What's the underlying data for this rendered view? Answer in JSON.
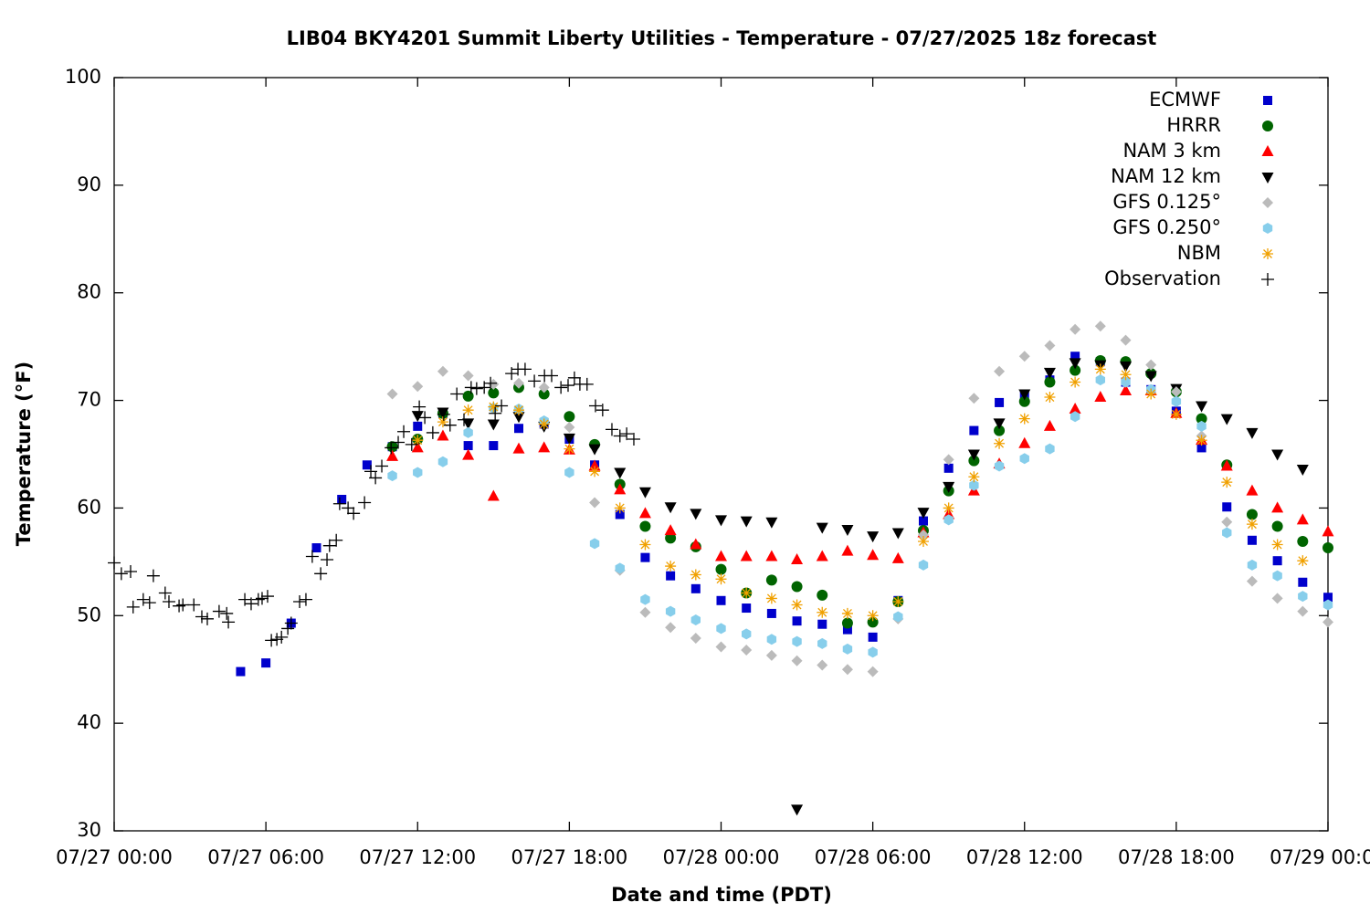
{
  "chart_data": {
    "type": "scatter",
    "title": "LIB04 BKY4201 Summit Liberty Utilities - Temperature - 07/27/2025 18z forecast",
    "x_label": "Date and time (PDT)",
    "y_label": "Temperature (°F)",
    "xlim": [
      "07/27 00:00",
      "07/29 00:00"
    ],
    "xticks": [
      "07/27 00:00",
      "07/27 06:00",
      "07/27 12:00",
      "07/27 18:00",
      "07/28 00:00",
      "07/28 06:00",
      "07/28 12:00",
      "07/28 18:00",
      "07/29 00:00"
    ],
    "ylim": [
      30,
      100
    ],
    "yticks": [
      30,
      40,
      50,
      60,
      70,
      80,
      90,
      100
    ],
    "legend": "top-right",
    "series": [
      {
        "name": "ECMWF",
        "color": "#0000cc",
        "marker": "square",
        "x": [
          "07/27 05:00",
          "07/27 06:00",
          "07/27 07:00",
          "07/27 08:00",
          "07/27 09:00",
          "07/27 10:00",
          "07/27 11:00",
          "07/27 12:00",
          "07/27 13:00",
          "07/27 14:00",
          "07/27 15:00",
          "07/27 16:00",
          "07/27 17:00",
          "07/27 18:00",
          "07/27 19:00",
          "07/27 20:00",
          "07/27 21:00",
          "07/27 22:00",
          "07/27 23:00",
          "07/28 00:00",
          "07/28 01:00",
          "07/28 02:00",
          "07/28 03:00",
          "07/28 04:00",
          "07/28 05:00",
          "07/28 06:00",
          "07/28 07:00",
          "07/28 08:00",
          "07/28 09:00",
          "07/28 10:00",
          "07/28 11:00",
          "07/28 12:00",
          "07/28 13:00",
          "07/28 14:00",
          "07/28 15:00",
          "07/28 16:00",
          "07/28 17:00",
          "07/28 18:00",
          "07/28 19:00",
          "07/28 20:00",
          "07/28 21:00",
          "07/28 22:00",
          "07/28 23:00",
          "07/29 00:00"
        ],
        "values": [
          44.8,
          45.6,
          49.3,
          56.3,
          60.8,
          64.0,
          65.7,
          67.6,
          68.8,
          65.8,
          65.8,
          67.4,
          67.8,
          66.4,
          64.0,
          59.4,
          55.4,
          53.7,
          52.5,
          51.4,
          50.7,
          50.2,
          49.5,
          49.2,
          48.7,
          48.0,
          51.4,
          58.8,
          63.7,
          67.2,
          69.8,
          70.6,
          71.9,
          74.1,
          73.6,
          71.7,
          71.0,
          69.0,
          65.6,
          60.1,
          57.0,
          55.1,
          53.1,
          51.7
        ]
      },
      {
        "name": "HRRR",
        "color": "#006400",
        "marker": "circle",
        "x": [
          "07/27 11:00",
          "07/27 12:00",
          "07/27 13:00",
          "07/27 14:00",
          "07/27 15:00",
          "07/27 16:00",
          "07/27 17:00",
          "07/27 18:00",
          "07/27 19:00",
          "07/27 20:00",
          "07/27 21:00",
          "07/27 22:00",
          "07/27 23:00",
          "07/28 00:00",
          "07/28 01:00",
          "07/28 02:00",
          "07/28 03:00",
          "07/28 04:00",
          "07/28 05:00",
          "07/28 06:00",
          "07/28 07:00",
          "07/28 08:00",
          "07/28 09:00",
          "07/28 10:00",
          "07/28 11:00",
          "07/28 12:00",
          "07/28 13:00",
          "07/28 14:00",
          "07/28 15:00",
          "07/28 16:00",
          "07/28 17:00",
          "07/28 18:00",
          "07/28 19:00",
          "07/28 20:00",
          "07/28 21:00",
          "07/28 22:00",
          "07/28 23:00",
          "07/29 00:00"
        ],
        "values": [
          65.7,
          66.4,
          68.8,
          70.4,
          70.7,
          71.2,
          70.6,
          68.5,
          65.9,
          62.2,
          58.3,
          57.2,
          56.4,
          54.3,
          52.1,
          53.3,
          52.7,
          51.9,
          49.3,
          49.4,
          51.3,
          57.9,
          61.6,
          64.4,
          67.2,
          69.9,
          71.7,
          72.8,
          73.7,
          73.6,
          72.5,
          70.8,
          68.3,
          64.0,
          59.4,
          58.3,
          56.9,
          56.3
        ]
      },
      {
        "name": "NAM 3 km",
        "color": "#ff0000",
        "marker": "triangle-up",
        "x": [
          "07/27 11:00",
          "07/27 12:00",
          "07/27 13:00",
          "07/27 14:00",
          "07/27 15:00",
          "07/27 16:00",
          "07/27 17:00",
          "07/27 18:00",
          "07/27 19:00",
          "07/27 20:00",
          "07/27 21:00",
          "07/27 22:00",
          "07/27 23:00",
          "07/28 00:00",
          "07/28 01:00",
          "07/28 02:00",
          "07/28 03:00",
          "07/28 04:00",
          "07/28 05:00",
          "07/28 06:00",
          "07/28 07:00",
          "07/28 08:00",
          "07/28 09:00",
          "07/28 10:00",
          "07/28 11:00",
          "07/28 12:00",
          "07/28 13:00",
          "07/28 14:00",
          "07/28 15:00",
          "07/28 16:00",
          "07/28 17:00",
          "07/28 18:00",
          "07/28 19:00",
          "07/28 20:00",
          "07/28 21:00",
          "07/28 22:00",
          "07/28 23:00",
          "07/29 00:00"
        ],
        "values": [
          64.8,
          65.6,
          66.7,
          64.9,
          61.1,
          65.5,
          65.6,
          65.4,
          63.9,
          61.7,
          59.5,
          57.9,
          56.6,
          55.5,
          55.5,
          55.5,
          55.2,
          55.5,
          56.0,
          55.6,
          55.3,
          57.7,
          59.4,
          61.6,
          64.1,
          66.0,
          67.6,
          69.2,
          70.3,
          70.9,
          70.9,
          68.8,
          66.3,
          63.9,
          61.6,
          60.0,
          58.9,
          57.8
        ]
      },
      {
        "name": "NAM 12 km",
        "color": "#000000",
        "marker": "triangle-down",
        "x": [
          "07/27 12:00",
          "07/27 13:00",
          "07/27 14:00",
          "07/27 15:00",
          "07/27 16:00",
          "07/27 17:00",
          "07/27 18:00",
          "07/27 19:00",
          "07/27 20:00",
          "07/27 21:00",
          "07/27 22:00",
          "07/27 23:00",
          "07/28 00:00",
          "07/28 01:00",
          "07/28 02:00",
          "07/28 03:00",
          "07/28 04:00",
          "07/28 05:00",
          "07/28 06:00",
          "07/28 07:00",
          "07/28 08:00",
          "07/28 09:00",
          "07/28 10:00",
          "07/28 11:00",
          "07/28 12:00",
          "07/28 13:00",
          "07/28 14:00",
          "07/28 15:00",
          "07/28 16:00",
          "07/28 17:00",
          "07/28 18:00",
          "07/28 19:00",
          "07/28 20:00",
          "07/28 21:00",
          "07/28 22:00",
          "07/28 23:00"
        ],
        "values": [
          68.6,
          68.9,
          67.9,
          67.8,
          68.5,
          67.6,
          66.5,
          65.5,
          63.3,
          61.5,
          60.1,
          59.5,
          58.9,
          58.8,
          58.7,
          32.0,
          58.2,
          58.0,
          57.4,
          57.7,
          59.6,
          62.0,
          65.0,
          67.9,
          70.6,
          72.6,
          73.5,
          73.3,
          73.2,
          72.3,
          71.1,
          69.5,
          68.3,
          67.0,
          65.0,
          63.6
        ]
      },
      {
        "name": "GFS 0.125°",
        "color": "#bbbbbb",
        "marker": "diamond",
        "x": [
          "07/27 11:00",
          "07/27 12:00",
          "07/27 13:00",
          "07/27 14:00",
          "07/27 15:00",
          "07/27 16:00",
          "07/27 17:00",
          "07/27 18:00",
          "07/27 19:00",
          "07/27 20:00",
          "07/27 21:00",
          "07/27 22:00",
          "07/27 23:00",
          "07/28 00:00",
          "07/28 01:00",
          "07/28 02:00",
          "07/28 03:00",
          "07/28 04:00",
          "07/28 05:00",
          "07/28 06:00",
          "07/28 07:00",
          "07/28 08:00",
          "07/28 09:00",
          "07/28 10:00",
          "07/28 11:00",
          "07/28 12:00",
          "07/28 13:00",
          "07/28 14:00",
          "07/28 15:00",
          "07/28 16:00",
          "07/28 17:00",
          "07/28 18:00",
          "07/28 19:00",
          "07/28 20:00",
          "07/28 21:00",
          "07/28 22:00",
          "07/28 23:00",
          "07/29 00:00"
        ],
        "values": [
          70.6,
          71.3,
          72.7,
          72.3,
          71.5,
          71.6,
          71.2,
          67.5,
          60.5,
          54.2,
          50.3,
          48.9,
          47.9,
          47.1,
          46.8,
          46.3,
          45.8,
          45.4,
          45.0,
          44.8,
          49.7,
          57.5,
          64.5,
          70.2,
          72.7,
          74.1,
          75.1,
          76.6,
          76.9,
          75.6,
          73.3,
          70.8,
          66.7,
          58.7,
          53.2,
          51.6,
          50.4,
          49.4
        ]
      },
      {
        "name": "GFS 0.250°",
        "color": "#87ceeb",
        "marker": "hexagon",
        "x": [
          "07/27 11:00",
          "07/27 12:00",
          "07/27 13:00",
          "07/27 14:00",
          "07/27 15:00",
          "07/27 16:00",
          "07/27 17:00",
          "07/27 18:00",
          "07/27 19:00",
          "07/27 20:00",
          "07/27 21:00",
          "07/27 22:00",
          "07/27 23:00",
          "07/28 00:00",
          "07/28 01:00",
          "07/28 02:00",
          "07/28 03:00",
          "07/28 04:00",
          "07/28 05:00",
          "07/28 06:00",
          "07/28 07:00",
          "07/28 08:00",
          "07/28 09:00",
          "07/28 10:00",
          "07/28 11:00",
          "07/28 12:00",
          "07/28 13:00",
          "07/28 14:00",
          "07/28 15:00",
          "07/28 16:00",
          "07/28 17:00",
          "07/28 18:00",
          "07/28 19:00",
          "07/28 20:00",
          "07/28 21:00",
          "07/28 22:00",
          "07/28 23:00",
          "07/29 00:00"
        ],
        "values": [
          63.0,
          63.3,
          64.3,
          67.0,
          69.3,
          69.2,
          68.1,
          63.3,
          56.7,
          54.4,
          51.5,
          50.4,
          49.6,
          48.8,
          48.3,
          47.8,
          47.6,
          47.4,
          46.9,
          46.6,
          49.9,
          54.7,
          58.9,
          62.1,
          63.9,
          64.6,
          65.5,
          68.5,
          71.9,
          71.7,
          71.0,
          69.9,
          67.6,
          57.7,
          54.7,
          53.7,
          51.8,
          51.0
        ]
      },
      {
        "name": "NBM",
        "color": "#f0a000",
        "marker": "asterisk",
        "x": [
          "07/27 12:00",
          "07/27 13:00",
          "07/27 14:00",
          "07/27 15:00",
          "07/27 16:00",
          "07/27 17:00",
          "07/27 18:00",
          "07/27 19:00",
          "07/27 20:00",
          "07/27 21:00",
          "07/27 22:00",
          "07/27 23:00",
          "07/28 00:00",
          "07/28 01:00",
          "07/28 02:00",
          "07/28 03:00",
          "07/28 04:00",
          "07/28 05:00",
          "07/28 06:00",
          "07/28 07:00",
          "07/28 08:00",
          "07/28 09:00",
          "07/28 10:00",
          "07/28 11:00",
          "07/28 12:00",
          "07/28 13:00",
          "07/28 14:00",
          "07/28 15:00",
          "07/28 16:00",
          "07/28 17:00",
          "07/28 18:00",
          "07/28 19:00",
          "07/28 20:00",
          "07/28 21:00",
          "07/28 22:00",
          "07/28 23:00"
        ],
        "values": [
          66.3,
          68.0,
          69.1,
          69.4,
          69.1,
          67.8,
          65.5,
          63.4,
          60.0,
          56.6,
          54.6,
          53.8,
          53.4,
          52.1,
          51.6,
          51.0,
          50.3,
          50.2,
          50.0,
          51.3,
          56.9,
          60.0,
          62.9,
          66.0,
          68.3,
          70.3,
          71.7,
          72.9,
          72.4,
          70.6,
          68.7,
          66.3,
          62.4,
          58.5,
          56.6,
          55.1
        ]
      },
      {
        "name": "Observation",
        "color": "#000000",
        "marker": "plus",
        "x": [
          "07/27 00:00",
          "07/27 00:17",
          "07/27 00:39",
          "07/27 00:45",
          "07/27 01:09",
          "07/27 01:24",
          "07/27 01:33",
          "07/27 02:01",
          "07/27 02:10",
          "07/27 02:34",
          "07/27 02:43",
          "07/27 03:09",
          "07/27 03:28",
          "07/27 03:41",
          "07/27 04:09",
          "07/27 04:27",
          "07/27 04:31",
          "07/27 05:10",
          "07/27 05:25",
          "07/27 05:42",
          "07/27 05:51",
          "07/27 06:04",
          "07/27 06:13",
          "07/27 06:26",
          "07/27 06:37",
          "07/27 06:52",
          "07/27 07:00",
          "07/27 07:20",
          "07/27 07:35",
          "07/27 07:50",
          "07/27 08:10",
          "07/27 08:25",
          "07/27 08:31",
          "07/27 08:47",
          "07/27 08:55",
          "07/27 09:15",
          "07/27 09:28",
          "07/27 09:54",
          "07/27 10:09",
          "07/27 10:20",
          "07/27 10:35",
          "07/27 10:57",
          "07/27 11:14",
          "07/27 11:27",
          "07/27 11:46",
          "07/27 12:04",
          "07/27 12:17",
          "07/27 12:36",
          "07/27 13:02",
          "07/27 13:17",
          "07/27 13:33",
          "07/27 13:50",
          "07/27 14:07",
          "07/27 14:20",
          "07/27 14:38",
          "07/27 14:53",
          "07/27 15:04",
          "07/27 15:19",
          "07/27 15:43",
          "07/27 15:58",
          "07/27 16:15",
          "07/27 16:37",
          "07/27 17:01",
          "07/27 17:18",
          "07/27 17:40",
          "07/27 17:57",
          "07/27 18:12",
          "07/27 18:25",
          "07/27 18:42",
          "07/27 19:02",
          "07/27 19:19",
          "07/27 19:41",
          "07/27 20:00",
          "07/27 20:16",
          "07/27 20:33"
        ],
        "values": [
          54.9,
          53.9,
          54.1,
          50.8,
          51.5,
          51.2,
          53.7,
          52.1,
          51.3,
          50.9,
          51.0,
          51.0,
          49.9,
          49.7,
          50.4,
          50.2,
          49.4,
          51.5,
          51.1,
          51.5,
          51.6,
          51.8,
          47.7,
          47.8,
          48.0,
          48.8,
          49.3,
          51.3,
          51.5,
          55.5,
          53.9,
          55.2,
          56.5,
          57.0,
          60.4,
          60.0,
          59.5,
          60.5,
          63.4,
          62.8,
          63.9,
          65.6,
          66.1,
          67.1,
          65.9,
          69.4,
          68.4,
          67.0,
          68.7,
          67.7,
          70.6,
          68.2,
          71.2,
          71.1,
          71.2,
          71.6,
          68.8,
          69.5,
          72.5,
          72.9,
          72.9,
          71.8,
          72.3,
          72.3,
          71.2,
          71.4,
          72.1,
          71.5,
          71.5,
          69.5,
          69.1,
          67.3,
          66.7,
          66.9,
          66.4
        ]
      }
    ]
  }
}
